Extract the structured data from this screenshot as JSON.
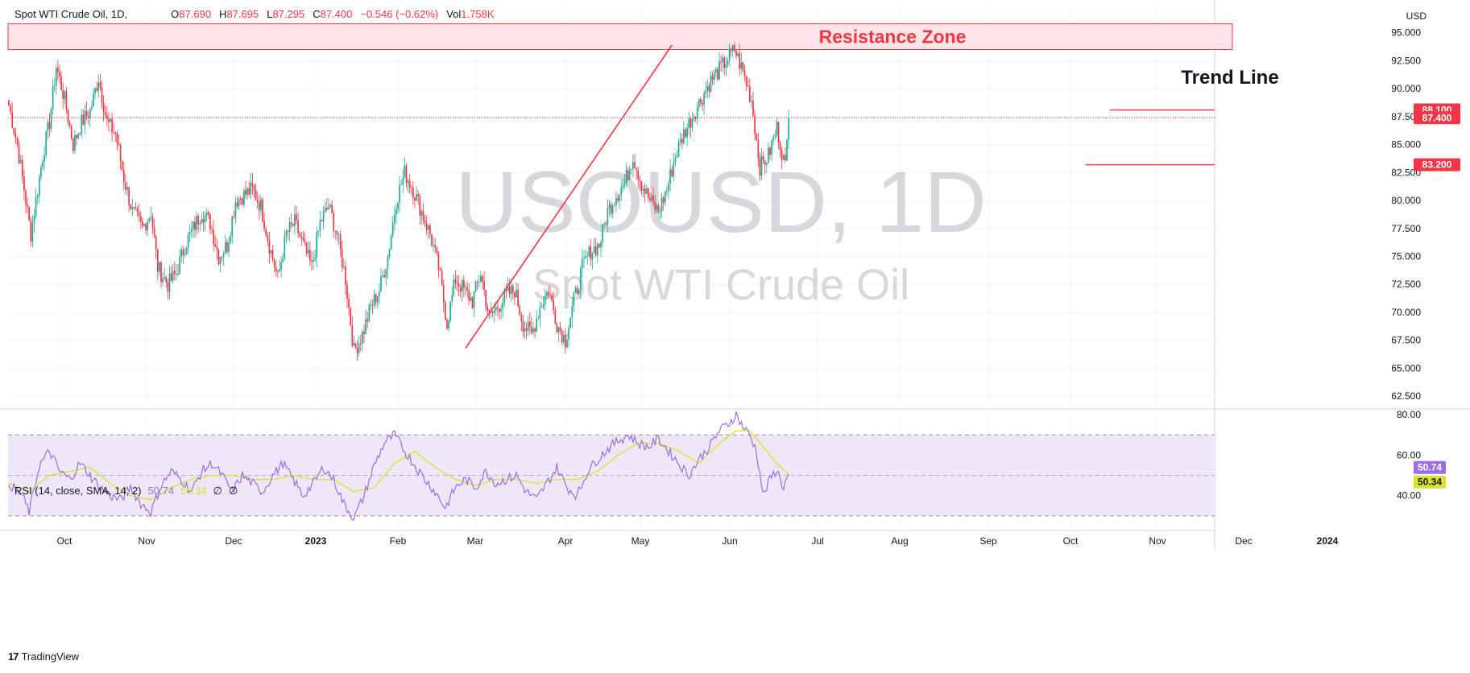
{
  "header": {
    "symbol": "Spot WTI Crude Oil, 1D,",
    "o_key": "O",
    "o_val": "87.690",
    "h_key": "H",
    "h_val": "87.695",
    "l_key": "L",
    "l_val": "87.295",
    "c_key": "C",
    "c_val": "87.400",
    "change": "−0.546 (−0.62%)",
    "vol_key": "Vol",
    "vol_val": "1.758K"
  },
  "rsi_header": {
    "label": "RSI (14, close, SMA, 14, 2)",
    "rsi_value": "50.74",
    "sma_value": "50.34",
    "extra1": "∅",
    "extra2": "∅"
  },
  "brand": {
    "logo": "17",
    "name": "TradingView"
  },
  "colors": {
    "up": "#22ab94",
    "down": "#f23645",
    "rsi": "#9c6ee0",
    "rsi_sma": "#d8e32d",
    "annotation": "#f23645",
    "rsi_band": "#ede7f9"
  },
  "chart_data": {
    "type": "candlestick",
    "watermark_symbol": "USOUSD, 1D",
    "watermark_name": "Spot WTI Crude Oil",
    "currency": "USD",
    "y_ticks": [
      "95.000",
      "92.500",
      "90.000",
      "87.500",
      "85.000",
      "82.500",
      "80.000",
      "77.500",
      "75.000",
      "72.500",
      "70.000",
      "67.500",
      "65.000",
      "62.500"
    ],
    "ylim": [
      61.5,
      97.5
    ],
    "x_ticks": [
      "Oct",
      "Nov",
      "Dec",
      "2023",
      "Feb",
      "Mar",
      "Apr",
      "May",
      "Jun",
      "Jul",
      "Aug",
      "Sep",
      "Oct",
      "Nov",
      "Dec",
      "2024"
    ],
    "close_anchors": [
      [
        0,
        88.5
      ],
      [
        5,
        85.0
      ],
      [
        10,
        80.0
      ],
      [
        13,
        77.0
      ],
      [
        17,
        81.0
      ],
      [
        20,
        84.0
      ],
      [
        24,
        87.0
      ],
      [
        28,
        92.0
      ],
      [
        33,
        89.0
      ],
      [
        38,
        85.0
      ],
      [
        43,
        87.0
      ],
      [
        48,
        88.0
      ],
      [
        53,
        91.0
      ],
      [
        58,
        87.0
      ],
      [
        63,
        86.0
      ],
      [
        68,
        82.0
      ],
      [
        73,
        79.0
      ],
      [
        79,
        77.5
      ],
      [
        84,
        79.0
      ],
      [
        88,
        74.0
      ],
      [
        94,
        72.5
      ],
      [
        99,
        73.5
      ],
      [
        104,
        76.0
      ],
      [
        109,
        77.5
      ],
      [
        114,
        79.0
      ],
      [
        119,
        78.0
      ],
      [
        124,
        75.0
      ],
      [
        129,
        76.0
      ],
      [
        134,
        80.0
      ],
      [
        139,
        80.5
      ],
      [
        144,
        81.0
      ],
      [
        149,
        79.5
      ],
      [
        154,
        76.0
      ],
      [
        159,
        73.0
      ],
      [
        164,
        77.0
      ],
      [
        169,
        78.0
      ],
      [
        174,
        76.0
      ],
      [
        179,
        74.0
      ],
      [
        184,
        78.0
      ],
      [
        189,
        79.5
      ],
      [
        194,
        77.0
      ],
      [
        199,
        73.0
      ],
      [
        204,
        66.5
      ],
      [
        209,
        68.0
      ],
      [
        214,
        70.5
      ],
      [
        219,
        72.0
      ],
      [
        224,
        75.0
      ],
      [
        229,
        80.0
      ],
      [
        234,
        82.5
      ],
      [
        239,
        81.0
      ],
      [
        244,
        79.0
      ],
      [
        249,
        77.0
      ],
      [
        254,
        74.0
      ],
      [
        259,
        69.0
      ],
      [
        264,
        73.0
      ],
      [
        269,
        72.0
      ],
      [
        274,
        71.0
      ],
      [
        279,
        73.5
      ],
      [
        284,
        69.5
      ],
      [
        289,
        70.5
      ],
      [
        294,
        71.5
      ],
      [
        299,
        72.0
      ],
      [
        304,
        69.0
      ],
      [
        309,
        68.0
      ],
      [
        314,
        70.5
      ],
      [
        319,
        72.0
      ],
      [
        324,
        69.0
      ],
      [
        329,
        67.5
      ],
      [
        334,
        71.0
      ],
      [
        339,
        74.0
      ],
      [
        344,
        75.5
      ],
      [
        349,
        76.0
      ],
      [
        354,
        79.0
      ],
      [
        359,
        80.5
      ],
      [
        364,
        81.5
      ],
      [
        369,
        84.0
      ],
      [
        374,
        81.5
      ],
      [
        379,
        80.0
      ],
      [
        384,
        79.0
      ],
      [
        389,
        81.0
      ],
      [
        394,
        84.0
      ],
      [
        399,
        86.0
      ],
      [
        404,
        87.5
      ],
      [
        409,
        89.0
      ],
      [
        414,
        90.5
      ],
      [
        419,
        91.5
      ],
      [
        424,
        92.5
      ],
      [
        429,
        93.5
      ],
      [
        434,
        91.5
      ],
      [
        439,
        89.0
      ],
      [
        444,
        83.0
      ],
      [
        449,
        84.0
      ],
      [
        454,
        86.5
      ],
      [
        459,
        83.0
      ],
      [
        461,
        87.4
      ]
    ],
    "rsi_ticks": [
      "80.00",
      "60.00",
      "40.00"
    ],
    "rsi_ylim": [
      24,
      82
    ],
    "rsi_levels": [
      70,
      50,
      30
    ],
    "rsi_anchors": [
      [
        0,
        46
      ],
      [
        8,
        40
      ],
      [
        12,
        32
      ],
      [
        18,
        55
      ],
      [
        24,
        62
      ],
      [
        30,
        52
      ],
      [
        36,
        48
      ],
      [
        42,
        56
      ],
      [
        48,
        50
      ],
      [
        54,
        44
      ],
      [
        60,
        40
      ],
      [
        66,
        38
      ],
      [
        72,
        44
      ],
      [
        78,
        36
      ],
      [
        84,
        32
      ],
      [
        90,
        45
      ],
      [
        96,
        52
      ],
      [
        102,
        48
      ],
      [
        108,
        42
      ],
      [
        114,
        52
      ],
      [
        120,
        56
      ],
      [
        126,
        50
      ],
      [
        132,
        42
      ],
      [
        138,
        50
      ],
      [
        144,
        46
      ],
      [
        150,
        42
      ],
      [
        156,
        50
      ],
      [
        162,
        56
      ],
      [
        168,
        48
      ],
      [
        174,
        40
      ],
      [
        180,
        46
      ],
      [
        186,
        54
      ],
      [
        192,
        48
      ],
      [
        198,
        36
      ],
      [
        204,
        29
      ],
      [
        210,
        40
      ],
      [
        216,
        55
      ],
      [
        222,
        66
      ],
      [
        228,
        70
      ],
      [
        234,
        62
      ],
      [
        240,
        55
      ],
      [
        246,
        48
      ],
      [
        252,
        42
      ],
      [
        258,
        34
      ],
      [
        264,
        44
      ],
      [
        270,
        48
      ],
      [
        276,
        44
      ],
      [
        282,
        52
      ],
      [
        288,
        46
      ],
      [
        294,
        48
      ],
      [
        300,
        50
      ],
      [
        306,
        42
      ],
      [
        312,
        38
      ],
      [
        318,
        46
      ],
      [
        324,
        54
      ],
      [
        330,
        44
      ],
      [
        336,
        40
      ],
      [
        342,
        52
      ],
      [
        348,
        58
      ],
      [
        354,
        63
      ],
      [
        360,
        67
      ],
      [
        366,
        70
      ],
      [
        372,
        66
      ],
      [
        378,
        64
      ],
      [
        384,
        68
      ],
      [
        390,
        62
      ],
      [
        396,
        56
      ],
      [
        402,
        50
      ],
      [
        408,
        58
      ],
      [
        414,
        64
      ],
      [
        420,
        72
      ],
      [
        426,
        76
      ],
      [
        430,
        80
      ],
      [
        434,
        74
      ],
      [
        438,
        70
      ],
      [
        442,
        62
      ],
      [
        446,
        40
      ],
      [
        450,
        48
      ],
      [
        454,
        53
      ],
      [
        458,
        44
      ],
      [
        461,
        50.74
      ]
    ],
    "rsi_sma_anchors": [
      [
        0,
        46
      ],
      [
        12,
        42
      ],
      [
        24,
        50
      ],
      [
        36,
        52
      ],
      [
        48,
        54
      ],
      [
        60,
        46
      ],
      [
        72,
        40
      ],
      [
        84,
        38
      ],
      [
        96,
        44
      ],
      [
        108,
        48
      ],
      [
        120,
        50
      ],
      [
        132,
        50
      ],
      [
        144,
        48
      ],
      [
        156,
        48
      ],
      [
        168,
        50
      ],
      [
        180,
        48
      ],
      [
        192,
        48
      ],
      [
        204,
        42
      ],
      [
        216,
        44
      ],
      [
        228,
        56
      ],
      [
        240,
        62
      ],
      [
        252,
        54
      ],
      [
        264,
        48
      ],
      [
        276,
        45
      ],
      [
        288,
        48
      ],
      [
        300,
        48
      ],
      [
        312,
        46
      ],
      [
        324,
        48
      ],
      [
        336,
        48
      ],
      [
        348,
        52
      ],
      [
        360,
        60
      ],
      [
        372,
        66
      ],
      [
        384,
        66
      ],
      [
        396,
        62
      ],
      [
        408,
        56
      ],
      [
        420,
        66
      ],
      [
        430,
        72
      ],
      [
        438,
        72
      ],
      [
        446,
        64
      ],
      [
        454,
        56
      ],
      [
        461,
        50.34
      ]
    ],
    "price_labels": [
      {
        "text": "88.100",
        "value": 88.1,
        "style": "line"
      },
      {
        "text": "87.400",
        "value": 87.4,
        "style": "last"
      },
      {
        "text": "83.200",
        "value": 83.2,
        "style": "line"
      }
    ],
    "rsi_labels": [
      {
        "text": "50.74",
        "value": 50.74,
        "color": "#9c6ee0",
        "text_color": "#ffffff"
      },
      {
        "text": "50.34",
        "value": 50.34,
        "color": "#d8e32d",
        "text_color": "#131722"
      }
    ],
    "annotations": {
      "resistance_zone": {
        "label": "Resistance Zone",
        "from": 93.5,
        "to": 95.8
      },
      "trend_line": {
        "label": "Trend Line",
        "from": [
          270,
          66.8
        ],
        "to": [
          392,
          93.9
        ]
      }
    }
  }
}
